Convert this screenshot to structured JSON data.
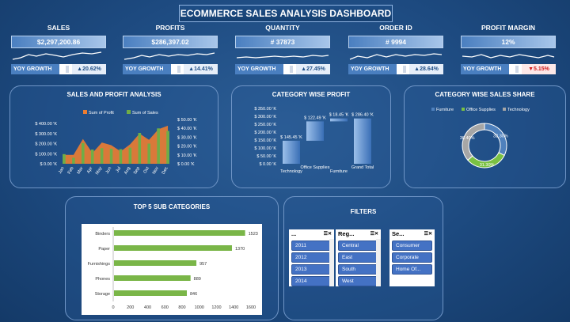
{
  "title": "ECOMMERCE SALES ANALYSIS DASHBOARD",
  "kpis": [
    {
      "label": "SALES",
      "value": "$2,297,200.86",
      "growth_label": "YOY GROWTH",
      "growth": "▲20.62%",
      "negative": false
    },
    {
      "label": "PROFITS",
      "value": "$286,397.02",
      "growth_label": "YOY GROWTH",
      "growth": "▲14.41%",
      "negative": false
    },
    {
      "label": "QUANTITY",
      "value": "# 37873",
      "growth_label": "YOY GROWTH",
      "growth": "▲27.45%",
      "negative": false
    },
    {
      "label": "ORDER ID",
      "value": "# 9994",
      "growth_label": "YOY GROWTH",
      "growth": "▲28.64%",
      "negative": false
    },
    {
      "label": "PROFIT MARGIN",
      "value": "12%",
      "growth_label": "YOY GROWTH",
      "growth": "▼5.15%",
      "negative": true
    }
  ],
  "sales_profit": {
    "title": "SALES AND PROFIT ANALYSIS",
    "legend": [
      "Sum of Profit",
      "Sum of Sales"
    ],
    "months": [
      "Jan",
      "Feb",
      "Mar",
      "Apr",
      "May",
      "Jun",
      "Jul",
      "Aug",
      "Sep",
      "Oct",
      "Nov",
      "Dec"
    ],
    "left_ticks": [
      "$ 400.00 'K",
      "$ 300.00 'K",
      "$ 200.00 'K",
      "$ 100.00 'K",
      "$ 0.00 'K"
    ],
    "right_ticks": [
      "$ 50.00 'K",
      "$ 40.00 'K",
      "$ 30.00 'K",
      "$ 20.00 'K",
      "$ 10.00 'K",
      "$ 0.00 'K"
    ],
    "sales": [
      95,
      60,
      205,
      140,
      155,
      150,
      145,
      160,
      305,
      200,
      350,
      325
    ],
    "profit": [
      10,
      10,
      28,
      12,
      24,
      21,
      14,
      22,
      34,
      27,
      39,
      43
    ]
  },
  "category_profit": {
    "title": "CATEGORY WISE PROFIT",
    "ticks": [
      "$ 350.00 'K",
      "$ 300.00 'K",
      "$ 250.00 'K",
      "$ 200.00 'K",
      "$ 150.00 'K",
      "$ 100.00 'K",
      "$ 50.00 'K",
      "$ 0.00 'K"
    ],
    "bars": [
      {
        "name": "Technology",
        "label": "$ 145.45 'K",
        "value": 145.45
      },
      {
        "name": "Office Supplies",
        "label": "$ 122.49 'K",
        "value": 122.49
      },
      {
        "name": "Furniture",
        "label": "$ 18.45 'K",
        "value": 18.45
      },
      {
        "name": "Grand Total",
        "label": "$ 286.40 'K",
        "value": 286.4
      }
    ]
  },
  "category_share": {
    "title": "CATEGORY WISE SALES SHARE",
    "legend": [
      "Furniture",
      "Office Supplies",
      "Technology"
    ],
    "slices": [
      {
        "name": "Furniture",
        "label": "32.30%",
        "value": 32.3,
        "color": "#4f81bd"
      },
      {
        "name": "Office Supplies",
        "label": "31.30%",
        "value": 31.3,
        "color": "#7ac143"
      },
      {
        "name": "Technology",
        "label": "36.40%",
        "value": 36.4,
        "color": "#a6a6a6"
      }
    ]
  },
  "top5": {
    "title": "TOP 5 SUB CATEGORIES",
    "items": [
      {
        "name": "Binders",
        "value": 1523
      },
      {
        "name": "Paper",
        "value": 1370
      },
      {
        "name": "Furnishings",
        "value": 957
      },
      {
        "name": "Phones",
        "value": 889
      },
      {
        "name": "Storage",
        "value": 846
      }
    ],
    "ticks": [
      "0",
      "200",
      "400",
      "600",
      "800",
      "1000",
      "1200",
      "1400",
      "1600"
    ]
  },
  "filters": {
    "title": "FILTERS",
    "slicers": [
      {
        "header": "...",
        "items": [
          "2011",
          "2012",
          "2013",
          "2014"
        ]
      },
      {
        "header": "Reg...",
        "items": [
          "Central",
          "East",
          "South",
          "West"
        ]
      },
      {
        "header": "Se...",
        "items": [
          "Consumer",
          "Corporate",
          "Home Of..."
        ]
      }
    ]
  }
}
